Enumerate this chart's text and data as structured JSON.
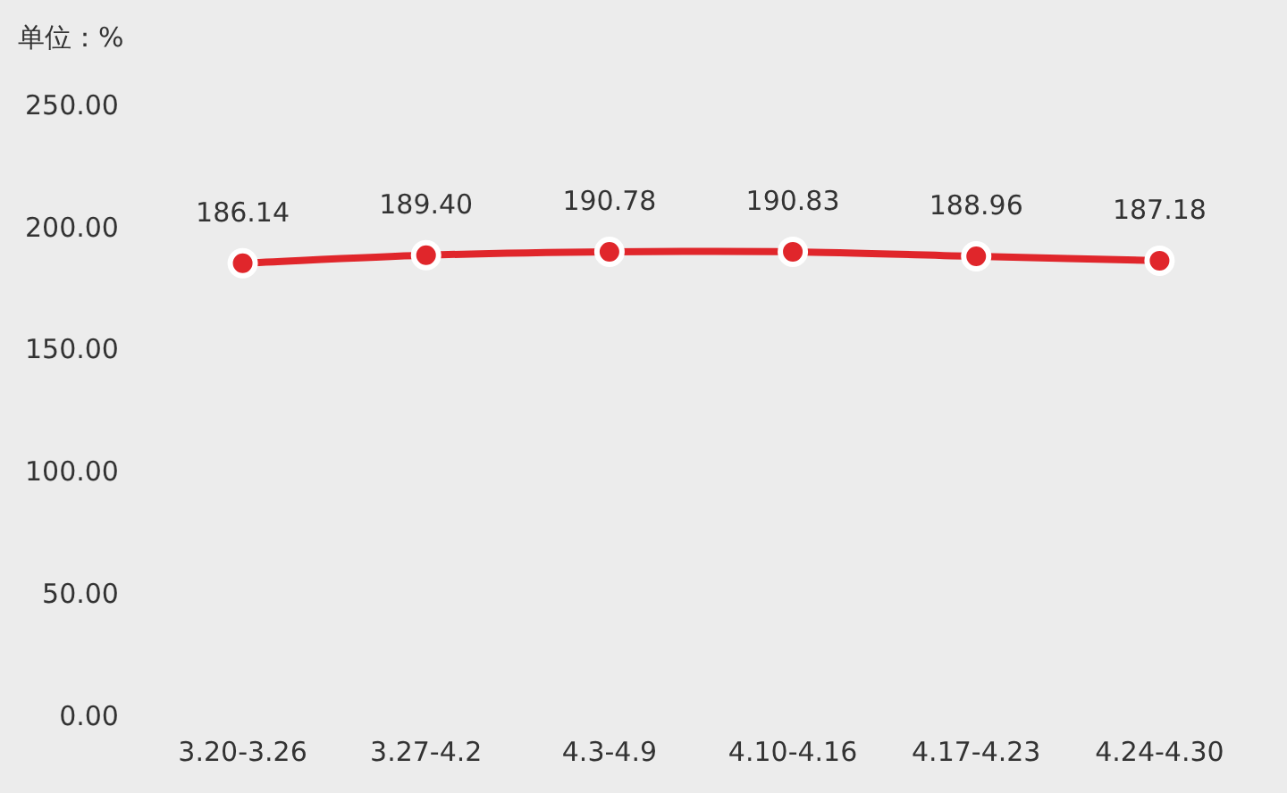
{
  "chart_data": {
    "type": "line",
    "ylabel": "单位：%",
    "categories": [
      "3.20-3.26",
      "3.27-4.2",
      "4.3-4.9",
      "4.10-4.16",
      "4.17-4.23",
      "4.24-4.30"
    ],
    "values": [
      186.14,
      189.4,
      190.78,
      190.83,
      188.96,
      187.18
    ],
    "value_labels": [
      "186.14",
      "189.40",
      "190.78",
      "190.83",
      "188.96",
      "187.18"
    ],
    "color": "#e0262b",
    "marker": "circle",
    "line_style": "solid",
    "ylim": [
      0,
      250
    ],
    "yticks": [
      {
        "value": 0,
        "label": "0.00"
      },
      {
        "value": 50,
        "label": "50.00"
      },
      {
        "value": 100,
        "label": "100.00"
      },
      {
        "value": 150,
        "label": "150.00"
      },
      {
        "value": 200,
        "label": "200.00"
      },
      {
        "value": 250,
        "label": "250.00"
      }
    ]
  }
}
